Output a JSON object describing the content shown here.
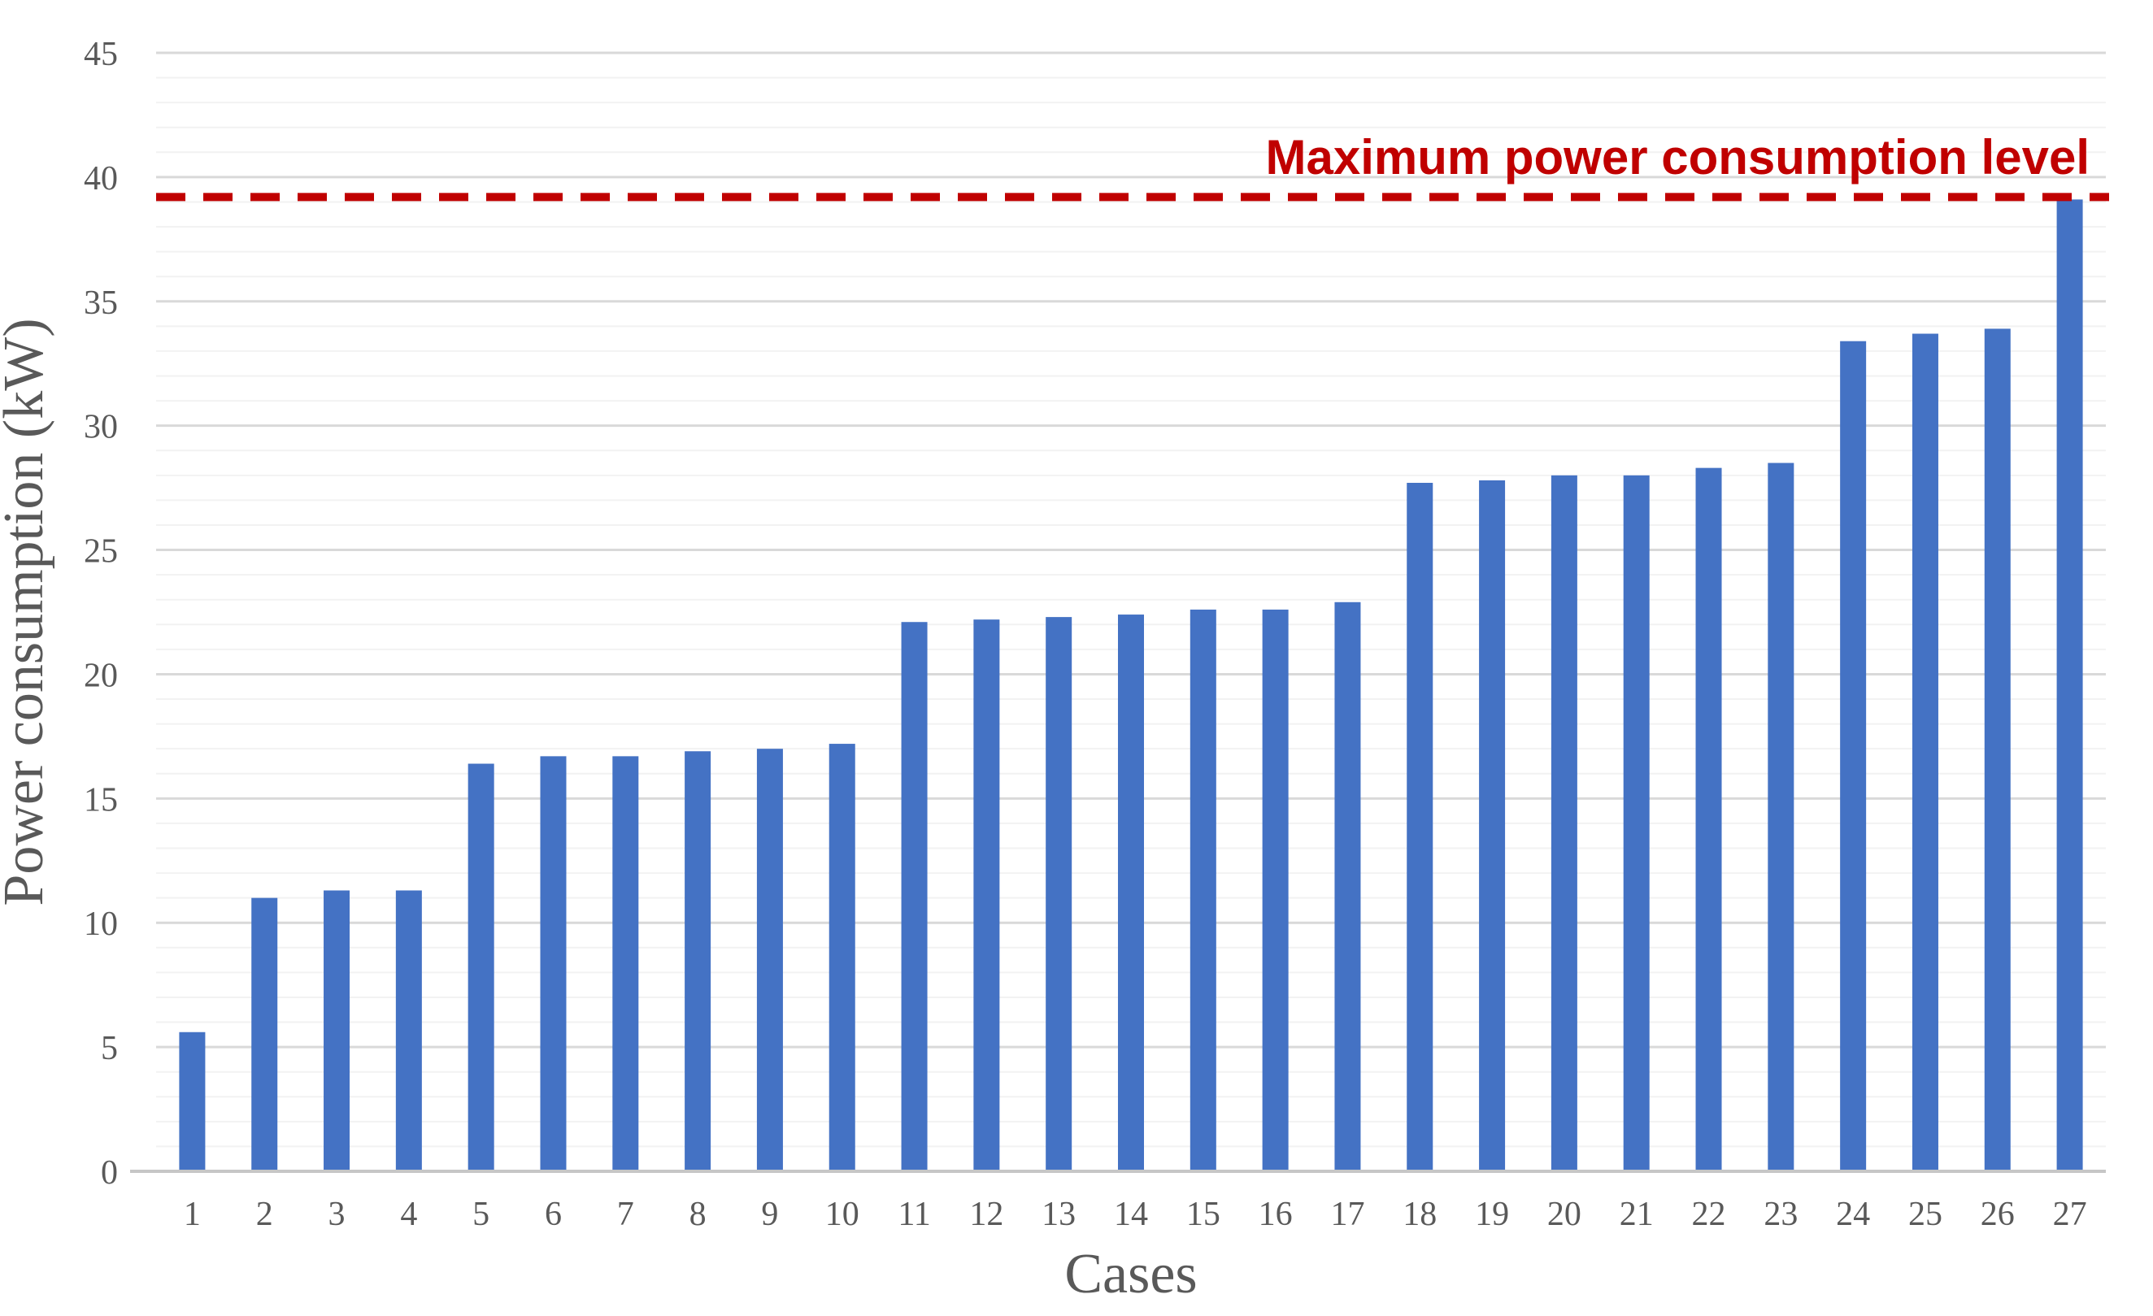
{
  "chart_data": {
    "type": "bar",
    "title": "",
    "xlabel": "Cases",
    "ylabel": "Power consumption (kW)",
    "categories": [
      "1",
      "2",
      "3",
      "4",
      "5",
      "6",
      "7",
      "8",
      "9",
      "10",
      "11",
      "12",
      "13",
      "14",
      "15",
      "16",
      "17",
      "18",
      "19",
      "20",
      "21",
      "22",
      "23",
      "24",
      "25",
      "26",
      "27"
    ],
    "values": [
      5.6,
      11.0,
      11.3,
      11.3,
      16.4,
      16.7,
      16.7,
      16.9,
      17.0,
      17.2,
      22.1,
      22.2,
      22.3,
      22.4,
      22.6,
      22.6,
      22.9,
      27.7,
      27.8,
      28.0,
      28.0,
      28.3,
      28.5,
      33.4,
      33.7,
      33.9,
      39.1
    ],
    "ylim": [
      0,
      45
    ],
    "y_ticks": [
      0,
      5,
      10,
      15,
      20,
      25,
      30,
      35,
      40,
      45
    ],
    "minor_grid_step": 1,
    "grid": true,
    "legend_position": "none",
    "annotation": {
      "label": "Maximum power consumption level",
      "value": 39.2,
      "line_style": "dashed",
      "color": "#C00000"
    },
    "colors": {
      "bar": "#4472C4",
      "grid_major": "#D9D9D9",
      "grid_minor": "#F2F2F2",
      "axis_line": "#C6C6C6",
      "text": "#595959"
    }
  }
}
